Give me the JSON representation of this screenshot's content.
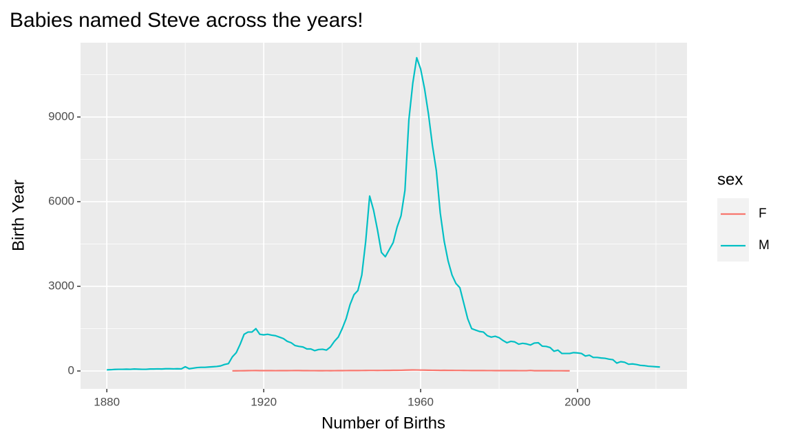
{
  "chart_data": {
    "type": "line",
    "title": "Babies named Steve across the years!",
    "x_label": "Number of Births",
    "y_label": "Birth Year",
    "legend_title": "sex",
    "legend_position": "right",
    "grid": true,
    "xlim": [
      1873.3,
      2027.9
    ],
    "ylim": [
      -634,
      11634
    ],
    "xticks": [
      1880,
      1920,
      1960,
      2000
    ],
    "yticks": [
      0,
      3000,
      6000,
      9000
    ],
    "x": [
      1880,
      1881,
      1882,
      1883,
      1884,
      1885,
      1886,
      1887,
      1888,
      1889,
      1890,
      1891,
      1892,
      1893,
      1894,
      1895,
      1896,
      1897,
      1898,
      1899,
      1900,
      1901,
      1902,
      1903,
      1904,
      1905,
      1906,
      1907,
      1908,
      1909,
      1910,
      1911,
      1912,
      1913,
      1914,
      1915,
      1916,
      1917,
      1918,
      1919,
      1920,
      1921,
      1922,
      1923,
      1924,
      1925,
      1926,
      1927,
      1928,
      1929,
      1930,
      1931,
      1932,
      1933,
      1934,
      1935,
      1936,
      1937,
      1938,
      1939,
      1940,
      1941,
      1942,
      1943,
      1944,
      1945,
      1946,
      1947,
      1948,
      1949,
      1950,
      1951,
      1952,
      1953,
      1954,
      1955,
      1956,
      1957,
      1958,
      1959,
      1960,
      1961,
      1962,
      1963,
      1964,
      1965,
      1966,
      1967,
      1968,
      1969,
      1970,
      1971,
      1972,
      1973,
      1974,
      1975,
      1976,
      1977,
      1978,
      1979,
      1980,
      1981,
      1982,
      1983,
      1984,
      1985,
      1986,
      1987,
      1988,
      1989,
      1990,
      1991,
      1992,
      1993,
      1994,
      1995,
      1996,
      1997,
      1998,
      1999,
      2000,
      2001,
      2002,
      2003,
      2004,
      2005,
      2006,
      2007,
      2008,
      2009,
      2010,
      2011,
      2012,
      2013,
      2014,
      2015,
      2016,
      2017,
      2018,
      2019,
      2020,
      2021
    ],
    "series": [
      {
        "name": "F",
        "color": "#F8766D",
        "values": [
          null,
          null,
          null,
          null,
          null,
          null,
          null,
          null,
          null,
          null,
          null,
          null,
          null,
          null,
          null,
          null,
          null,
          null,
          null,
          null,
          null,
          null,
          null,
          null,
          null,
          null,
          null,
          null,
          null,
          null,
          null,
          null,
          5,
          6,
          8,
          10,
          12,
          14,
          15,
          13,
          12,
          12,
          12,
          11,
          12,
          13,
          12,
          14,
          16,
          15,
          13,
          12,
          11,
          11,
          10,
          10,
          11,
          10,
          11,
          12,
          13,
          14,
          15,
          16,
          15,
          17,
          18,
          20,
          20,
          19,
          20,
          21,
          22,
          24,
          25,
          26,
          30,
          34,
          36,
          35,
          32,
          30,
          28,
          26,
          24,
          22,
          24,
          22,
          21,
          20,
          20,
          18,
          17,
          16,
          16,
          15,
          15,
          14,
          14,
          13,
          13,
          13,
          12,
          12,
          12,
          11,
          11,
          11,
          20,
          10,
          10,
          9,
          9,
          9,
          8,
          8,
          8,
          7,
          7,
          null,
          null,
          null,
          null,
          null,
          null,
          null,
          null,
          null,
          null,
          null,
          null,
          null,
          null,
          null,
          null,
          null,
          null,
          null,
          null,
          null,
          null,
          null
        ]
      },
      {
        "name": "M",
        "color": "#00BFC4",
        "values": [
          40,
          45,
          55,
          60,
          60,
          65,
          60,
          70,
          65,
          60,
          60,
          70,
          70,
          75,
          70,
          80,
          80,
          75,
          80,
          75,
          150,
          80,
          100,
          120,
          130,
          130,
          140,
          150,
          160,
          180,
          230,
          260,
          500,
          650,
          950,
          1300,
          1380,
          1380,
          1500,
          1300,
          1280,
          1300,
          1270,
          1250,
          1200,
          1150,
          1050,
          1000,
          900,
          870,
          850,
          780,
          780,
          720,
          760,
          770,
          740,
          850,
          1050,
          1200,
          1500,
          1850,
          2350,
          2700,
          2850,
          3400,
          4600,
          6200,
          5700,
          5000,
          4200,
          4050,
          4300,
          4550,
          5100,
          5500,
          6400,
          8900,
          10200,
          11100,
          10700,
          10000,
          9100,
          8000,
          7100,
          5600,
          4600,
          3900,
          3400,
          3100,
          2950,
          2400,
          1850,
          1500,
          1450,
          1400,
          1380,
          1250,
          1200,
          1230,
          1180,
          1080,
          1000,
          1050,
          1030,
          950,
          980,
          960,
          920,
          990,
          1000,
          880,
          870,
          830,
          700,
          740,
          620,
          620,
          620,
          650,
          640,
          620,
          530,
          560,
          480,
          480,
          460,
          450,
          420,
          400,
          280,
          330,
          310,
          240,
          250,
          230,
          200,
          190,
          170,
          160,
          150,
          140
        ]
      }
    ]
  }
}
